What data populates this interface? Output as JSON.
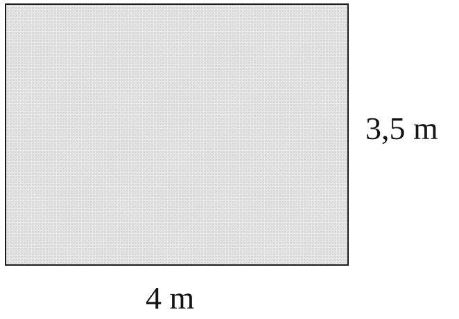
{
  "figure": {
    "shape": "rectangle",
    "fill_color": "#e2e2e2",
    "border_color": "#1a1a1a",
    "height_label": "3,5 m",
    "width_label": "4 m"
  }
}
